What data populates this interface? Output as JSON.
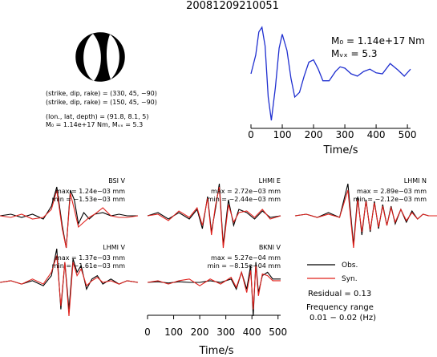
{
  "event_id": "20081209210051",
  "focal": {
    "plane1": "(strike, dip, rake) = (330, 45, −90)",
    "plane2": "(strike, dip, rake) = (150, 45, −90)",
    "location": "(lon., lat, depth) = (91.8, 8.1, 5)",
    "moment": "M₀ = 1.14e+17 Nm, Mᵥₓ = 5.3"
  },
  "stf": {
    "m0_label": "M₀ = 1.14e+17 Nm",
    "mw_label": "Mᵥₓ = 5.3",
    "xlabel": "Time/s"
  },
  "legend": {
    "obs": "Obs.",
    "syn": "Syn.",
    "residual": "Residual = 0.13",
    "freq_title": "Frequency range",
    "freq_value": "0.01 − 0.02 (Hz)"
  },
  "panels": [
    {
      "station": "BSI V",
      "max": "max = 1.24e−03 mm",
      "min": "min = −1.53e−03 mm"
    },
    {
      "station": "LHMI E",
      "max": "max = 2.72e−03 mm",
      "min": "min = −2.44e−03 mm"
    },
    {
      "station": "LHMI N",
      "max": "max = 2.89e−03 mm",
      "min": "min = −2.12e−03 mm"
    },
    {
      "station": "LHMI V",
      "max": "max = 1.37e−03 mm",
      "min": "min = −1.61e−03 mm"
    },
    {
      "station": "BKNI V",
      "max": "max = 5.27e−04 mm",
      "min": "min = −8.15e−04 mm"
    }
  ],
  "bottom_xlabel": "Time/s",
  "colors": {
    "observed": "#000000",
    "synthetic": "#e0201b",
    "stf": "#1f2fd0"
  },
  "chart_data": [
    {
      "type": "line",
      "name": "source time function",
      "xlabel": "Time/s",
      "xlim": [
        0,
        510
      ],
      "xticks": [
        0,
        100,
        200,
        300,
        400,
        500
      ],
      "x": [
        0,
        15,
        25,
        35,
        45,
        55,
        65,
        78,
        90,
        100,
        115,
        128,
        140,
        155,
        170,
        185,
        200,
        215,
        230,
        250,
        270,
        285,
        300,
        320,
        340,
        360,
        380,
        400,
        420,
        445,
        470,
        490,
        510
      ],
      "y": [
        0.0,
        0.4,
        0.9,
        1.0,
        0.6,
        -0.5,
        -1.0,
        -0.3,
        0.55,
        0.85,
        0.5,
        -0.1,
        -0.5,
        -0.4,
        -0.05,
        0.25,
        0.3,
        0.1,
        -0.15,
        -0.15,
        0.05,
        0.15,
        0.12,
        0.0,
        -0.05,
        0.05,
        0.1,
        0.02,
        0.0,
        0.22,
        0.08,
        -0.05,
        0.1
      ]
    },
    {
      "type": "line",
      "name": "waveform comparison",
      "xlabel": "Time/s",
      "xlim": [
        0,
        510
      ],
      "xticks": [
        0,
        100,
        200,
        300,
        400,
        500
      ],
      "panels": [
        {
          "station": "BSI V",
          "x": [
            0,
            40,
            80,
            120,
            160,
            190,
            210,
            230,
            245,
            260,
            275,
            290,
            310,
            330,
            350,
            380,
            410,
            440,
            470,
            510
          ],
          "observed": [
            0.0,
            0.05,
            -0.05,
            0.05,
            -0.1,
            0.3,
            0.9,
            -0.3,
            -1.0,
            0.8,
            0.5,
            -0.25,
            0.1,
            -0.1,
            0.05,
            0.1,
            0.0,
            0.05,
            0.0,
            0.0
          ],
          "synthetic": [
            0.0,
            -0.05,
            0.05,
            -0.1,
            -0.05,
            0.2,
            0.8,
            -0.4,
            -1.0,
            0.7,
            0.2,
            -0.35,
            -0.2,
            -0.05,
            0.05,
            0.25,
            0.0,
            -0.05,
            -0.05,
            0.0
          ]
        },
        {
          "station": "LHMI E",
          "x": [
            0,
            40,
            80,
            120,
            160,
            190,
            210,
            230,
            245,
            260,
            275,
            290,
            310,
            330,
            350,
            380,
            410,
            440,
            470,
            510
          ],
          "observed": [
            0.0,
            0.1,
            -0.1,
            0.1,
            -0.1,
            0.2,
            -0.4,
            0.6,
            -0.5,
            0.2,
            1.0,
            -0.9,
            0.5,
            -0.3,
            0.2,
            0.1,
            -0.1,
            0.15,
            -0.05,
            0.0
          ],
          "synthetic": [
            0.0,
            0.05,
            -0.15,
            0.15,
            -0.05,
            0.25,
            -0.3,
            0.55,
            -0.6,
            0.3,
            0.9,
            -1.0,
            0.35,
            -0.2,
            0.1,
            0.15,
            -0.05,
            0.2,
            -0.1,
            0.0
          ]
        },
        {
          "station": "LHMI N",
          "x": [
            0,
            40,
            80,
            120,
            160,
            190,
            210,
            225,
            240,
            255,
            270,
            285,
            300,
            315,
            330,
            345,
            360,
            380,
            400,
            420,
            440,
            460,
            480,
            510
          ],
          "observed": [
            0.0,
            0.05,
            -0.05,
            0.1,
            -0.05,
            1.0,
            -0.9,
            0.6,
            -0.6,
            0.5,
            -0.5,
            0.45,
            -0.4,
            0.35,
            -0.3,
            0.3,
            -0.25,
            0.2,
            -0.2,
            0.15,
            -0.1,
            0.05,
            0.0,
            0.0
          ],
          "synthetic": [
            0.0,
            0.05,
            -0.05,
            0.05,
            -0.05,
            0.8,
            -1.0,
            0.5,
            -0.5,
            0.45,
            -0.45,
            0.4,
            -0.35,
            0.3,
            -0.3,
            0.25,
            -0.2,
            0.2,
            -0.15,
            0.1,
            -0.1,
            0.05,
            0.0,
            0.0
          ]
        },
        {
          "station": "LHMI V",
          "x": [
            0,
            40,
            80,
            120,
            160,
            190,
            210,
            225,
            240,
            255,
            270,
            285,
            300,
            320,
            340,
            360,
            380,
            410,
            440,
            470,
            510
          ],
          "observed": [
            0.0,
            0.05,
            -0.05,
            0.05,
            -0.1,
            0.2,
            1.0,
            -0.8,
            0.6,
            -0.8,
            0.7,
            0.3,
            0.5,
            -0.2,
            0.1,
            0.2,
            -0.05,
            0.1,
            -0.05,
            0.05,
            0.0
          ],
          "synthetic": [
            0.0,
            0.05,
            -0.05,
            0.1,
            -0.05,
            0.3,
            0.8,
            -0.7,
            0.6,
            -1.0,
            0.6,
            0.2,
            0.4,
            -0.1,
            0.05,
            0.15,
            0.0,
            0.05,
            -0.05,
            0.05,
            0.0
          ]
        },
        {
          "station": "BKNI V",
          "x": [
            0,
            40,
            80,
            120,
            160,
            200,
            240,
            280,
            320,
            340,
            360,
            380,
            395,
            405,
            415,
            425,
            440,
            460,
            480,
            510
          ],
          "observed": [
            0.0,
            0.02,
            -0.02,
            0.02,
            0.0,
            0.0,
            0.05,
            0.0,
            0.1,
            -0.2,
            0.3,
            -0.2,
            0.5,
            -1.0,
            0.6,
            -0.3,
            0.2,
            0.3,
            0.1,
            0.1
          ],
          "synthetic": [
            0.0,
            0.05,
            -0.05,
            0.05,
            0.1,
            -0.1,
            0.1,
            -0.05,
            0.15,
            -0.15,
            0.3,
            -0.3,
            0.35,
            -0.8,
            0.5,
            -0.4,
            0.25,
            0.2,
            0.05,
            0.05
          ]
        }
      ]
    }
  ]
}
